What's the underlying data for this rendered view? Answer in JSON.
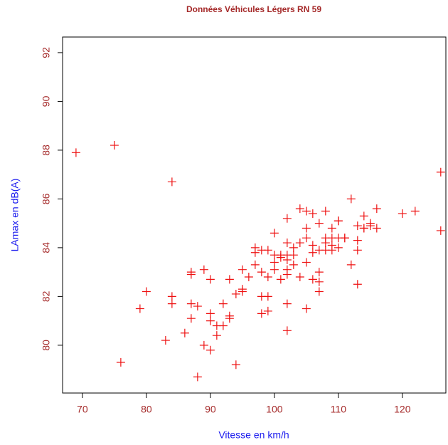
{
  "chart_data": {
    "type": "scatter",
    "title": "Données Véhicules Légers RN 59",
    "x_label": "Vitesse en km/h",
    "y_label": "LAmax en dB(A)",
    "color": "#ee1111",
    "xlim": [
      66.9,
      126.8
    ],
    "ylim": [
      78.04,
      92.64
    ],
    "xticks": [
      70,
      80,
      90,
      100,
      110,
      120
    ],
    "yticks": [
      80,
      82,
      84,
      86,
      88,
      90,
      92
    ],
    "x": [
      69,
      75,
      84,
      126,
      126,
      120,
      122,
      116,
      116,
      112,
      114,
      113,
      115,
      114,
      111,
      110,
      79,
      80,
      76,
      83,
      84,
      84,
      86,
      87,
      87,
      87,
      87,
      88,
      88,
      89,
      89,
      90,
      90,
      90,
      90,
      91,
      91,
      92,
      92,
      93,
      93,
      93,
      94,
      94,
      95,
      95,
      95,
      96,
      97,
      97,
      97,
      98,
      98,
      98,
      98,
      99,
      99,
      99,
      99,
      100,
      100,
      100,
      100,
      101,
      101,
      101,
      102,
      102,
      102,
      102,
      102,
      102,
      102,
      102,
      103,
      103,
      103,
      104,
      104,
      104,
      105,
      105,
      105,
      105,
      105,
      106,
      106,
      106,
      106,
      107,
      107,
      107,
      107,
      107,
      108,
      108,
      108,
      108,
      109,
      109,
      109,
      109,
      110,
      110,
      110,
      111,
      112,
      113,
      113,
      113,
      114,
      115
    ],
    "values": [
      87.9,
      88.2,
      86.7,
      87.1,
      84.7,
      85.4,
      85.5,
      85.6,
      84.8,
      86.0,
      85.3,
      84.9,
      85.0,
      84.8,
      84.4,
      85.1,
      81.5,
      82.2,
      79.3,
      80.2,
      82.0,
      81.7,
      80.5,
      83.0,
      82.9,
      81.7,
      81.1,
      81.6,
      78.7,
      83.1,
      80.0,
      82.7,
      81.3,
      81.0,
      79.8,
      80.8,
      80.4,
      81.7,
      80.8,
      82.7,
      81.2,
      81.1,
      82.1,
      79.2,
      83.1,
      82.3,
      82.2,
      82.8,
      84.0,
      83.8,
      83.3,
      83.9,
      83.0,
      82.0,
      81.3,
      83.9,
      82.8,
      82.0,
      81.4,
      84.6,
      83.7,
      83.4,
      83.1,
      83.7,
      83.6,
      82.7,
      85.2,
      84.2,
      83.7,
      83.5,
      83.1,
      82.9,
      81.7,
      80.6,
      84.0,
      83.7,
      83.3,
      85.6,
      84.2,
      82.8,
      85.5,
      84.8,
      84.4,
      83.4,
      81.5,
      85.4,
      84.1,
      83.8,
      82.7,
      85.0,
      83.9,
      83.0,
      82.6,
      82.2,
      85.5,
      84.4,
      84.2,
      83.9,
      84.8,
      84.4,
      84.1,
      83.9,
      85.1,
      84.4,
      84.0,
      84.4,
      83.3,
      83.9,
      82.5,
      84.3,
      84.8,
      84.9
    ]
  }
}
